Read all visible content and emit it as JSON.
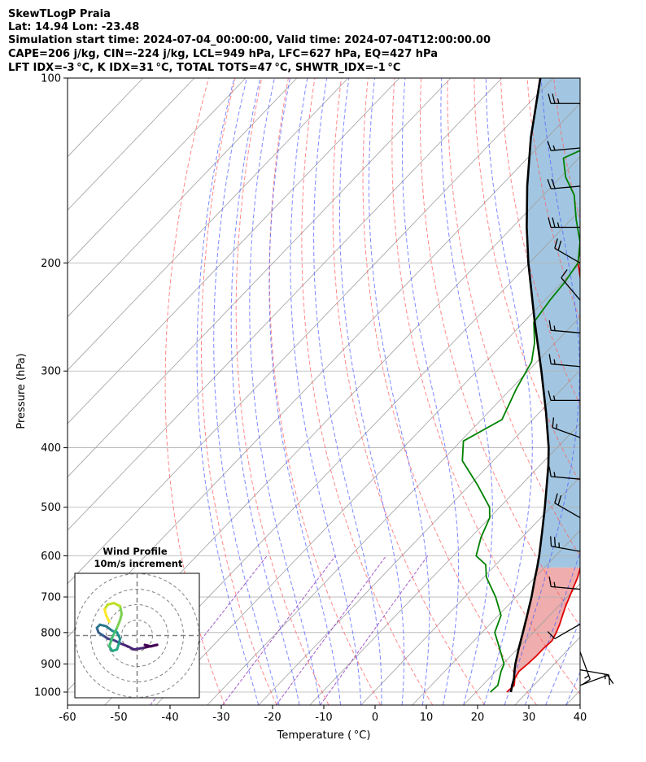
{
  "header": {
    "lines": [
      "SkewTLogP Praia",
      "Lat: 14.94   Lon: -23.48",
      "Simulation start time: 2024-07-04_00:00:00, Valid time: 2024-07-04T12:00:00.00",
      "CAPE=206 j/kg, CIN=-224 j/kg, LCL=949 hPa, LFC=627 hPa, EQ=427 hPa",
      "LFT IDX=-3 °C, K IDX=31 °C, TOTAL TOTS=47 °C, SHWTR_IDX=-1 °C"
    ]
  },
  "chart_data": {
    "type": "line",
    "subtype": "skew-t log-p",
    "xlabel": "Temperature ( °C)",
    "ylabel": "Pressure (hPa)",
    "xlim": [
      -60,
      40
    ],
    "ylim": [
      1050,
      100
    ],
    "y_scale": "log",
    "grid": true,
    "x_ticks": [
      -60,
      -50,
      -40,
      -30,
      -20,
      -10,
      0,
      10,
      20,
      30,
      40
    ],
    "y_ticks": [
      100,
      200,
      300,
      400,
      500,
      600,
      700,
      800,
      900,
      1000
    ],
    "colors": {
      "temperature": "#e00000",
      "dewpoint": "#008000",
      "parcel": "#000000",
      "cape_fill": "#7aaed4",
      "cin_fill": "#e88a8a",
      "dry_adiabat": "#ff6060",
      "moist_adiabat": "#5060ff",
      "mixing_ratio": "#9040c0",
      "isotherm": "#a0a0a0",
      "grid": "#b0b0b0"
    },
    "series": [
      {
        "key": "temperature",
        "points": [
          [
            1000,
            26
          ],
          [
            975,
            26.2
          ],
          [
            950,
            25.0
          ],
          [
            925,
            24.5
          ],
          [
            900,
            24.8
          ],
          [
            875,
            25.0
          ],
          [
            850,
            25.0
          ],
          [
            825,
            25.2
          ],
          [
            800,
            24.5
          ],
          [
            775,
            23.6
          ],
          [
            750,
            22.5
          ],
          [
            725,
            21.4
          ],
          [
            700,
            20.4
          ],
          [
            650,
            18.3
          ],
          [
            600,
            15.5
          ],
          [
            550,
            12.0
          ],
          [
            500,
            8.0
          ],
          [
            450,
            3.5
          ],
          [
            400,
            -2.5
          ],
          [
            350,
            -9.8
          ],
          [
            300,
            -18.2
          ],
          [
            250,
            -28.2
          ],
          [
            220,
            -35.0
          ],
          [
            200,
            -40.5
          ],
          [
            175,
            -46.5
          ],
          [
            150,
            -52.0
          ],
          [
            125,
            -57.5
          ],
          [
            110,
            -61.5
          ],
          [
            100,
            -64.0
          ]
        ]
      },
      {
        "key": "dewpoint",
        "points": [
          [
            1000,
            22.8
          ],
          [
            975,
            23.0
          ],
          [
            950,
            22.0
          ],
          [
            925,
            21.0
          ],
          [
            900,
            20.2
          ],
          [
            850,
            16.5
          ],
          [
            800,
            12.5
          ],
          [
            750,
            10.5
          ],
          [
            700,
            6.0
          ],
          [
            650,
            0.5
          ],
          [
            620,
            -2.0
          ],
          [
            600,
            -5.5
          ],
          [
            560,
            -8.0
          ],
          [
            520,
            -10.0
          ],
          [
            500,
            -12.0
          ],
          [
            460,
            -18.5
          ],
          [
            420,
            -26.0
          ],
          [
            390,
            -29.5
          ],
          [
            360,
            -26.0
          ],
          [
            320,
            -29.0
          ],
          [
            290,
            -31.0
          ],
          [
            270,
            -34.0
          ],
          [
            250,
            -38.0
          ],
          [
            230,
            -39.0
          ],
          [
            215,
            -39.5
          ],
          [
            200,
            -40.5
          ],
          [
            185,
            -44.0
          ],
          [
            170,
            -49.0
          ],
          [
            155,
            -54.0
          ],
          [
            145,
            -59.0
          ],
          [
            135,
            -63.0
          ],
          [
            125,
            -58.0
          ],
          [
            115,
            -59.0
          ],
          [
            105,
            -57.0
          ],
          [
            100,
            -57.0
          ]
        ]
      },
      {
        "key": "parcel",
        "points": [
          [
            1000,
            26.8
          ],
          [
            975,
            25.8
          ],
          [
            949,
            24.8
          ],
          [
            925,
            23.6
          ],
          [
            900,
            22.4
          ],
          [
            850,
            20.2
          ],
          [
            800,
            18.0
          ],
          [
            750,
            15.6
          ],
          [
            700,
            13.0
          ],
          [
            650,
            10.0
          ],
          [
            627,
            8.6
          ],
          [
            600,
            6.8
          ],
          [
            550,
            3.0
          ],
          [
            500,
            -1.2
          ],
          [
            450,
            -6.0
          ],
          [
            427,
            -8.4
          ],
          [
            400,
            -11.6
          ],
          [
            350,
            -18.8
          ],
          [
            300,
            -27.4
          ],
          [
            250,
            -37.8
          ],
          [
            200,
            -50.2
          ],
          [
            175,
            -57.2
          ],
          [
            150,
            -64.8
          ],
          [
            125,
            -73.2
          ],
          [
            100,
            -82.5
          ]
        ]
      }
    ],
    "annotations": {
      "lcl_hpa": 949,
      "lfc_hpa": 627,
      "eq_hpa": 427
    },
    "wind_barbs": [
      {
        "p": 110,
        "dir": 270,
        "spd": 25
      },
      {
        "p": 130,
        "dir": 265,
        "spd": 15
      },
      {
        "p": 150,
        "dir": 265,
        "spd": 20
      },
      {
        "p": 175,
        "dir": 270,
        "spd": 25
      },
      {
        "p": 200,
        "dir": 300,
        "spd": 20
      },
      {
        "p": 230,
        "dir": 320,
        "spd": 10
      },
      {
        "p": 260,
        "dir": 275,
        "spd": 15
      },
      {
        "p": 295,
        "dir": 275,
        "spd": 15
      },
      {
        "p": 335,
        "dir": 270,
        "spd": 15
      },
      {
        "p": 385,
        "dir": 290,
        "spd": 15
      },
      {
        "p": 450,
        "dir": 275,
        "spd": 15
      },
      {
        "p": 520,
        "dir": 300,
        "spd": 20
      },
      {
        "p": 590,
        "dir": 280,
        "spd": 25
      },
      {
        "p": 680,
        "dir": 275,
        "spd": 15
      },
      {
        "p": 775,
        "dir": 240,
        "spd": 10
      },
      {
        "p": 860,
        "dir": 160,
        "spd": 15
      },
      {
        "p": 920,
        "dir": 100,
        "spd": 15
      },
      {
        "p": 975,
        "dir": 70,
        "spd": 10
      }
    ],
    "inset": {
      "title": "Wind Profile",
      "subtitle": "10m/s increment",
      "hodograph": {
        "points": [
          [
            0.5,
            -0.6
          ],
          [
            0.9,
            -0.7
          ],
          [
            1.3,
            -0.6
          ],
          [
            0.4,
            -0.8
          ],
          [
            -0.2,
            -0.9
          ],
          [
            -0.6,
            -0.7
          ],
          [
            -1.1,
            -0.5
          ],
          [
            -1.5,
            -0.3
          ],
          [
            -1.9,
            -0.2
          ],
          [
            -2.2,
            0.0
          ],
          [
            -2.5,
            0.2
          ],
          [
            -2.6,
            0.5
          ],
          [
            -2.4,
            0.7
          ],
          [
            -2.0,
            0.6
          ],
          [
            -1.6,
            0.3
          ],
          [
            -1.3,
            0.2
          ],
          [
            -1.1,
            -0.2
          ],
          [
            -1.2,
            -0.6
          ],
          [
            -1.3,
            -0.9
          ],
          [
            -1.6,
            -1.0
          ],
          [
            -1.8,
            -0.7
          ],
          [
            -1.6,
            -0.1
          ],
          [
            -1.3,
            0.5
          ],
          [
            -1.1,
            1.0
          ],
          [
            -1.0,
            1.4
          ],
          [
            -1.1,
            1.9
          ],
          [
            -1.5,
            2.1
          ],
          [
            -1.9,
            2.0
          ],
          [
            -2.1,
            1.7
          ],
          [
            -2.0,
            1.3
          ],
          [
            -1.8,
            0.9
          ]
        ]
      }
    }
  }
}
